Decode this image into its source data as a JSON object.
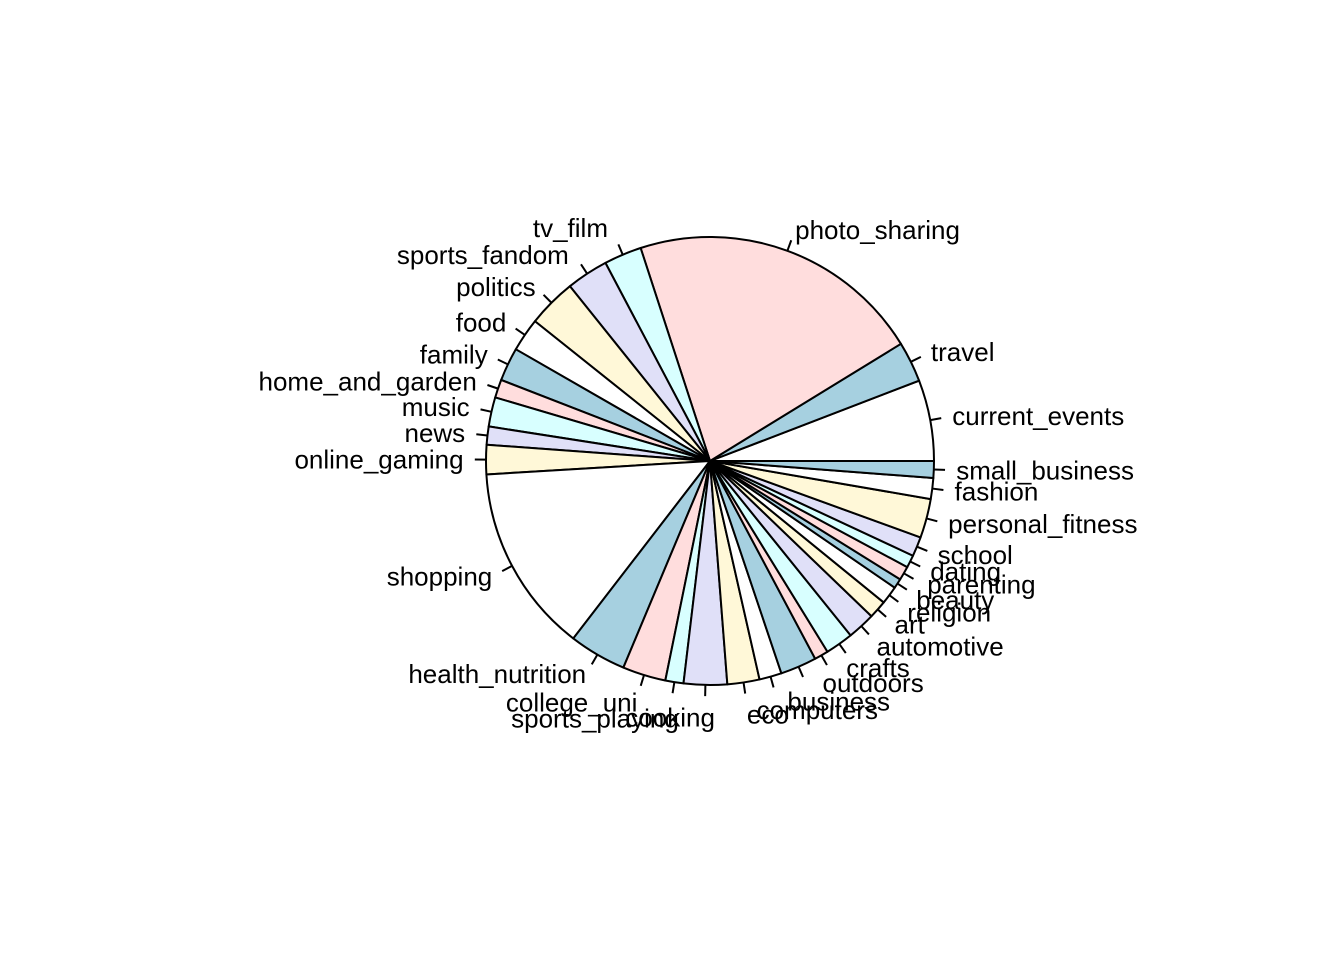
{
  "chart_data": {
    "type": "pie",
    "title": "",
    "start_angle_deg": 0,
    "direction": "counterclockwise",
    "colors": [
      "#A6D0E0",
      "#FFFFFF",
      "#FFDDDD",
      "#E0E0F8",
      "#FFF8D8",
      "#D8FFFF"
    ],
    "slice_order": [
      "current_events",
      "travel",
      "photo_sharing",
      "tv_film",
      "sports_fandom",
      "politics",
      "food",
      "family",
      "home_and_garden",
      "music",
      "news",
      "online_gaming",
      "shopping",
      "health_nutrition",
      "college_uni",
      "sports_playing",
      "cooking",
      "eco",
      "computers",
      "business",
      "outdoors",
      "crafts",
      "automotive",
      "art",
      "religion",
      "beauty",
      "parenting",
      "dating",
      "school",
      "personal_fitness",
      "fashion",
      "small_business"
    ],
    "slices": [
      {
        "label": "current_events",
        "value": 5.8,
        "color": "#FFFFFF"
      },
      {
        "label": "travel",
        "value": 2.9,
        "color": "#A6D0E0"
      },
      {
        "label": "photo_sharing",
        "value": 21.1,
        "color": "#FFDDDD"
      },
      {
        "label": "tv_film",
        "value": 2.7,
        "color": "#D8FFFF"
      },
      {
        "label": "sports_fandom",
        "value": 3.0,
        "color": "#E0E0F8"
      },
      {
        "label": "politics",
        "value": 3.5,
        "color": "#FFF8D8"
      },
      {
        "label": "food",
        "value": 2.4,
        "color": "#FFFFFF"
      },
      {
        "label": "family",
        "value": 2.4,
        "color": "#A6D0E0"
      },
      {
        "label": "home_and_garden",
        "value": 1.3,
        "color": "#FFDDDD"
      },
      {
        "label": "music",
        "value": 2.1,
        "color": "#D8FFFF"
      },
      {
        "label": "news",
        "value": 1.3,
        "color": "#E0E0F8"
      },
      {
        "label": "online_gaming",
        "value": 2.1,
        "color": "#FFF8D8"
      },
      {
        "label": "shopping",
        "value": 13.5,
        "color": "#FFFFFF"
      },
      {
        "label": "health_nutrition",
        "value": 4.1,
        "color": "#A6D0E0"
      },
      {
        "label": "college_uni",
        "value": 3.1,
        "color": "#FFDDDD"
      },
      {
        "label": "sports_playing",
        "value": 1.3,
        "color": "#D8FFFF"
      },
      {
        "label": "cooking",
        "value": 3.1,
        "color": "#E0E0F8"
      },
      {
        "label": "eco",
        "value": 2.3,
        "color": "#FFF8D8"
      },
      {
        "label": "computers",
        "value": 1.6,
        "color": "#FFFFFF"
      },
      {
        "label": "business",
        "value": 2.6,
        "color": "#A6D0E0"
      },
      {
        "label": "outdoors",
        "value": 1.0,
        "color": "#FFDDDD"
      },
      {
        "label": "crafts",
        "value": 2.0,
        "color": "#D8FFFF"
      },
      {
        "label": "automotive",
        "value": 2.0,
        "color": "#E0E0F8"
      },
      {
        "label": "art",
        "value": 1.3,
        "color": "#FFF8D8"
      },
      {
        "label": "religion",
        "value": 1.3,
        "color": "#FFFFFF"
      },
      {
        "label": "beauty",
        "value": 0.7,
        "color": "#A6D0E0"
      },
      {
        "label": "parenting",
        "value": 1.0,
        "color": "#FFDDDD"
      },
      {
        "label": "dating",
        "value": 0.9,
        "color": "#D8FFFF"
      },
      {
        "label": "school",
        "value": 1.4,
        "color": "#E0E0F8"
      },
      {
        "label": "personal_fitness",
        "value": 2.8,
        "color": "#FFF8D8"
      },
      {
        "label": "fashion",
        "value": 1.5,
        "color": "#FFFFFF"
      },
      {
        "label": "small_business",
        "value": 1.2,
        "color": "#A6D0E0"
      }
    ]
  }
}
